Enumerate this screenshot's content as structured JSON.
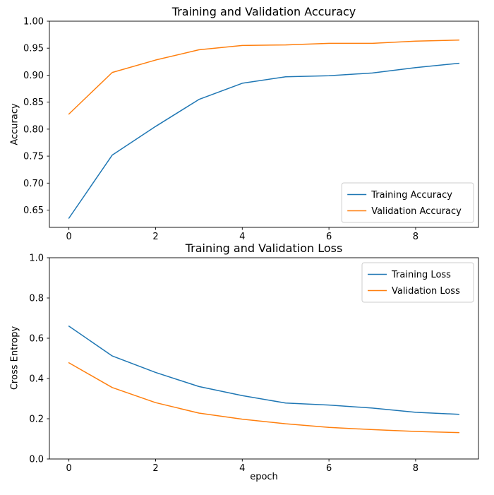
{
  "figure": {
    "background_color": "#ffffff",
    "spine_color": "#000000",
    "legend_border_color": "#cccccc",
    "train_color": "#1f77b4",
    "val_color": "#ff7f0e"
  },
  "chart_data": [
    {
      "type": "line",
      "title": "Training and Validation Accuracy",
      "xlabel": "",
      "ylabel": "Accuracy",
      "x": [
        0,
        1,
        2,
        3,
        4,
        5,
        6,
        7,
        8,
        9
      ],
      "series": [
        {
          "name": "Training Accuracy",
          "color": "#1f77b4",
          "values": [
            0.635,
            0.752,
            0.805,
            0.855,
            0.885,
            0.897,
            0.899,
            0.904,
            0.914,
            0.922
          ]
        },
        {
          "name": "Validation Accuracy",
          "color": "#ff7f0e",
          "values": [
            0.828,
            0.905,
            0.928,
            0.947,
            0.955,
            0.956,
            0.959,
            0.959,
            0.963,
            0.965
          ]
        }
      ],
      "xlim": [
        -0.45,
        9.45
      ],
      "ylim": [
        0.618,
        1.0
      ],
      "xticks": [
        0,
        2,
        4,
        6,
        8
      ],
      "xtick_labels": [
        "0",
        "2",
        "4",
        "6",
        "8"
      ],
      "yticks": [
        0.65,
        0.7,
        0.75,
        0.8,
        0.85,
        0.9,
        0.95,
        1.0
      ],
      "ytick_labels": [
        "0.65",
        "0.70",
        "0.75",
        "0.80",
        "0.85",
        "0.90",
        "0.95",
        "1.00"
      ],
      "grid": false,
      "legend": {
        "position": "lower right",
        "entries": [
          "Training Accuracy",
          "Validation Accuracy"
        ]
      }
    },
    {
      "type": "line",
      "title": "Training and Validation Loss",
      "xlabel": "epoch",
      "ylabel": "Cross Entropy",
      "x": [
        0,
        1,
        2,
        3,
        4,
        5,
        6,
        7,
        8,
        9
      ],
      "series": [
        {
          "name": "Training Loss",
          "color": "#1f77b4",
          "values": [
            0.66,
            0.512,
            0.43,
            0.36,
            0.315,
            0.278,
            0.268,
            0.253,
            0.232,
            0.222
          ]
        },
        {
          "name": "Validation Loss",
          "color": "#ff7f0e",
          "values": [
            0.478,
            0.355,
            0.28,
            0.228,
            0.198,
            0.175,
            0.157,
            0.146,
            0.137,
            0.131
          ]
        }
      ],
      "xlim": [
        -0.45,
        9.45
      ],
      "ylim": [
        0.0,
        1.0
      ],
      "xticks": [
        0,
        2,
        4,
        6,
        8
      ],
      "xtick_labels": [
        "0",
        "2",
        "4",
        "6",
        "8"
      ],
      "yticks": [
        0.0,
        0.2,
        0.4,
        0.6,
        0.8,
        1.0
      ],
      "ytick_labels": [
        "0.0",
        "0.2",
        "0.4",
        "0.6",
        "0.8",
        "1.0"
      ],
      "grid": false,
      "legend": {
        "position": "upper right",
        "entries": [
          "Training Loss",
          "Validation Loss"
        ]
      }
    }
  ]
}
